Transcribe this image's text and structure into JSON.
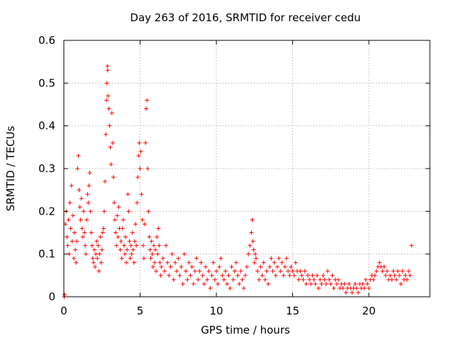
{
  "chart_data": {
    "type": "scatter",
    "title": "Day 263 of 2016, SRMTID for receiver cedu",
    "xlabel": "GPS time / hours",
    "ylabel": "SRMTID / TECUs",
    "xlim": [
      0,
      24
    ],
    "ylim": [
      0,
      0.6
    ],
    "x_ticks": [
      0,
      5,
      10,
      15,
      20
    ],
    "x_tick_labels": [
      "0",
      "5",
      "10",
      "15",
      "20"
    ],
    "y_ticks": [
      0,
      0.1,
      0.2,
      0.3,
      0.4,
      0.5,
      0.6
    ],
    "y_tick_labels": [
      "0",
      "0.1",
      "0.2",
      "0.3",
      "0.4",
      "0.5",
      "0.6"
    ],
    "grid": true,
    "marker": "+",
    "series": [
      {
        "name": "SRMTID",
        "color": "#ff0000",
        "points": [
          [
            0.02,
            0.0
          ],
          [
            0.05,
            0.005
          ],
          [
            0.1,
            0.17
          ],
          [
            0.15,
            0.2
          ],
          [
            0.2,
            0.14
          ],
          [
            0.25,
            0.12
          ],
          [
            0.3,
            0.18
          ],
          [
            0.35,
            0.1
          ],
          [
            0.4,
            0.22
          ],
          [
            0.45,
            0.16
          ],
          [
            0.5,
            0.26
          ],
          [
            0.55,
            0.13
          ],
          [
            0.6,
            0.19
          ],
          [
            0.65,
            0.09
          ],
          [
            0.7,
            0.15
          ],
          [
            0.75,
            0.11
          ],
          [
            0.8,
            0.08
          ],
          [
            0.85,
            0.13
          ],
          [
            0.9,
            0.3
          ],
          [
            0.95,
            0.33
          ],
          [
            1.0,
            0.25
          ],
          [
            1.05,
            0.21
          ],
          [
            1.1,
            0.18
          ],
          [
            1.15,
            0.23
          ],
          [
            1.2,
            0.16
          ],
          [
            1.25,
            0.14
          ],
          [
            1.3,
            0.2
          ],
          [
            1.35,
            0.15
          ],
          [
            1.4,
            0.12
          ],
          [
            1.45,
            0.1
          ],
          [
            1.5,
            0.18
          ],
          [
            1.55,
            0.24
          ],
          [
            1.6,
            0.22
          ],
          [
            1.65,
            0.26
          ],
          [
            1.7,
            0.29
          ],
          [
            1.75,
            0.2
          ],
          [
            1.8,
            0.15
          ],
          [
            1.85,
            0.12
          ],
          [
            1.9,
            0.09
          ],
          [
            1.95,
            0.08
          ],
          [
            2.0,
            0.11
          ],
          [
            2.05,
            0.07
          ],
          [
            2.1,
            0.1
          ],
          [
            2.15,
            0.13
          ],
          [
            2.2,
            0.09
          ],
          [
            2.25,
            0.12
          ],
          [
            2.3,
            0.06
          ],
          [
            2.35,
            0.1
          ],
          [
            2.4,
            0.14
          ],
          [
            2.45,
            0.08
          ],
          [
            2.5,
            0.11
          ],
          [
            2.55,
            0.15
          ],
          [
            2.6,
            0.16
          ],
          [
            2.65,
            0.2
          ],
          [
            2.7,
            0.27
          ],
          [
            2.75,
            0.38
          ],
          [
            2.8,
            0.46
          ],
          [
            2.82,
            0.5
          ],
          [
            2.85,
            0.54
          ],
          [
            2.88,
            0.53
          ],
          [
            2.9,
            0.47
          ],
          [
            2.95,
            0.44
          ],
          [
            3.0,
            0.4
          ],
          [
            3.05,
            0.35
          ],
          [
            3.1,
            0.31
          ],
          [
            3.15,
            0.43
          ],
          [
            3.2,
            0.36
          ],
          [
            3.25,
            0.28
          ],
          [
            3.3,
            0.22
          ],
          [
            3.35,
            0.18
          ],
          [
            3.4,
            0.15
          ],
          [
            3.45,
            0.12
          ],
          [
            3.5,
            0.19
          ],
          [
            3.55,
            0.14
          ],
          [
            3.6,
            0.21
          ],
          [
            3.65,
            0.16
          ],
          [
            3.7,
            0.11
          ],
          [
            3.75,
            0.13
          ],
          [
            3.8,
            0.09
          ],
          [
            3.85,
            0.16
          ],
          [
            3.9,
            0.18
          ],
          [
            3.95,
            0.12
          ],
          [
            4.0,
            0.1
          ],
          [
            4.05,
            0.14
          ],
          [
            4.1,
            0.08
          ],
          [
            4.15,
            0.11
          ],
          [
            4.2,
            0.24
          ],
          [
            4.25,
            0.2
          ],
          [
            4.3,
            0.13
          ],
          [
            4.35,
            0.09
          ],
          [
            4.4,
            0.12
          ],
          [
            4.45,
            0.1
          ],
          [
            4.5,
            0.15
          ],
          [
            4.55,
            0.11
          ],
          [
            4.6,
            0.08
          ],
          [
            4.65,
            0.13
          ],
          [
            4.7,
            0.17
          ],
          [
            4.75,
            0.12
          ],
          [
            4.8,
            0.22
          ],
          [
            4.85,
            0.28
          ],
          [
            4.9,
            0.33
          ],
          [
            4.95,
            0.36
          ],
          [
            5.0,
            0.3
          ],
          [
            5.05,
            0.34
          ],
          [
            5.1,
            0.24
          ],
          [
            5.15,
            0.18
          ],
          [
            5.2,
            0.12
          ],
          [
            5.25,
            0.09
          ],
          [
            5.3,
            0.17
          ],
          [
            5.35,
            0.36
          ],
          [
            5.4,
            0.44
          ],
          [
            5.45,
            0.46
          ],
          [
            5.5,
            0.3
          ],
          [
            5.55,
            0.2
          ],
          [
            5.6,
            0.14
          ],
          [
            5.65,
            0.11
          ],
          [
            5.7,
            0.09
          ],
          [
            5.75,
            0.13
          ],
          [
            5.8,
            0.1
          ],
          [
            5.85,
            0.07
          ],
          [
            5.9,
            0.12
          ],
          [
            5.95,
            0.08
          ],
          [
            6.0,
            0.11
          ],
          [
            6.05,
            0.06
          ],
          [
            6.1,
            0.14
          ],
          [
            6.15,
            0.1
          ],
          [
            6.2,
            0.16
          ],
          [
            6.25,
            0.12
          ],
          [
            6.3,
            0.08
          ],
          [
            6.35,
            0.05
          ],
          [
            6.4,
            0.07
          ],
          [
            6.5,
            0.09
          ],
          [
            6.6,
            0.06
          ],
          [
            6.7,
            0.12
          ],
          [
            6.8,
            0.08
          ],
          [
            6.9,
            0.05
          ],
          [
            7.0,
            0.07
          ],
          [
            7.1,
            0.1
          ],
          [
            7.2,
            0.04
          ],
          [
            7.3,
            0.08
          ],
          [
            7.4,
            0.06
          ],
          [
            7.5,
            0.09
          ],
          [
            7.6,
            0.05
          ],
          [
            7.7,
            0.07
          ],
          [
            7.8,
            0.03
          ],
          [
            7.9,
            0.1
          ],
          [
            8.0,
            0.06
          ],
          [
            8.1,
            0.04
          ],
          [
            8.2,
            0.08
          ],
          [
            8.3,
            0.05
          ],
          [
            8.4,
            0.07
          ],
          [
            8.5,
            0.03
          ],
          [
            8.6,
            0.06
          ],
          [
            8.7,
            0.09
          ],
          [
            8.8,
            0.04
          ],
          [
            8.9,
            0.06
          ],
          [
            9.0,
            0.08
          ],
          [
            9.1,
            0.05
          ],
          [
            9.2,
            0.03
          ],
          [
            9.3,
            0.07
          ],
          [
            9.4,
            0.04
          ],
          [
            9.5,
            0.06
          ],
          [
            9.6,
            0.02
          ],
          [
            9.7,
            0.05
          ],
          [
            9.8,
            0.08
          ],
          [
            9.9,
            0.04
          ],
          [
            10.0,
            0.06
          ],
          [
            10.1,
            0.03
          ],
          [
            10.2,
            0.07
          ],
          [
            10.3,
            0.09
          ],
          [
            10.4,
            0.05
          ],
          [
            10.5,
            0.04
          ],
          [
            10.6,
            0.06
          ],
          [
            10.7,
            0.03
          ],
          [
            10.8,
            0.05
          ],
          [
            10.9,
            0.02
          ],
          [
            11.0,
            0.07
          ],
          [
            11.1,
            0.04
          ],
          [
            11.2,
            0.06
          ],
          [
            11.3,
            0.08
          ],
          [
            11.4,
            0.05
          ],
          [
            11.5,
            0.03
          ],
          [
            11.6,
            0.06
          ],
          [
            11.7,
            0.04
          ],
          [
            11.8,
            0.02
          ],
          [
            11.9,
            0.05
          ],
          [
            12.0,
            0.07
          ],
          [
            12.1,
            0.1
          ],
          [
            12.2,
            0.12
          ],
          [
            12.3,
            0.15
          ],
          [
            12.35,
            0.18
          ],
          [
            12.4,
            0.13
          ],
          [
            12.45,
            0.11
          ],
          [
            12.5,
            0.08
          ],
          [
            12.55,
            0.1
          ],
          [
            12.6,
            0.09
          ],
          [
            12.7,
            0.06
          ],
          [
            12.8,
            0.04
          ],
          [
            12.9,
            0.07
          ],
          [
            13.0,
            0.05
          ],
          [
            13.1,
            0.08
          ],
          [
            13.2,
            0.04
          ],
          [
            13.3,
            0.06
          ],
          [
            13.4,
            0.03
          ],
          [
            13.5,
            0.07
          ],
          [
            13.6,
            0.09
          ],
          [
            13.7,
            0.06
          ],
          [
            13.8,
            0.08
          ],
          [
            13.9,
            0.05
          ],
          [
            14.0,
            0.07
          ],
          [
            14.1,
            0.09
          ],
          [
            14.2,
            0.06
          ],
          [
            14.3,
            0.08
          ],
          [
            14.4,
            0.05
          ],
          [
            14.5,
            0.07
          ],
          [
            14.6,
            0.09
          ],
          [
            14.7,
            0.06
          ],
          [
            14.8,
            0.05
          ],
          [
            14.9,
            0.07
          ],
          [
            15.0,
            0.06
          ],
          [
            15.1,
            0.05
          ],
          [
            15.2,
            0.08
          ],
          [
            15.3,
            0.06
          ],
          [
            15.4,
            0.04
          ],
          [
            15.5,
            0.06
          ],
          [
            15.6,
            0.05
          ],
          [
            15.7,
            0.04
          ],
          [
            15.8,
            0.06
          ],
          [
            15.9,
            0.03
          ],
          [
            16.0,
            0.05
          ],
          [
            16.1,
            0.04
          ],
          [
            16.2,
            0.03
          ],
          [
            16.3,
            0.05
          ],
          [
            16.4,
            0.04
          ],
          [
            16.5,
            0.03
          ],
          [
            16.6,
            0.05
          ],
          [
            16.7,
            0.02
          ],
          [
            16.8,
            0.04
          ],
          [
            16.9,
            0.03
          ],
          [
            17.0,
            0.05
          ],
          [
            17.1,
            0.04
          ],
          [
            17.2,
            0.03
          ],
          [
            17.3,
            0.06
          ],
          [
            17.4,
            0.04
          ],
          [
            17.5,
            0.03
          ],
          [
            17.6,
            0.05
          ],
          [
            17.7,
            0.02
          ],
          [
            17.8,
            0.04
          ],
          [
            17.9,
            0.03
          ],
          [
            18.0,
            0.04
          ],
          [
            18.1,
            0.02
          ],
          [
            18.2,
            0.03
          ],
          [
            18.3,
            0.02
          ],
          [
            18.4,
            0.03
          ],
          [
            18.5,
            0.01
          ],
          [
            18.6,
            0.02
          ],
          [
            18.7,
            0.03
          ],
          [
            18.8,
            0.02
          ],
          [
            18.9,
            0.01
          ],
          [
            19.0,
            0.02
          ],
          [
            19.1,
            0.03
          ],
          [
            19.2,
            0.02
          ],
          [
            19.3,
            0.01
          ],
          [
            19.4,
            0.03
          ],
          [
            19.5,
            0.02
          ],
          [
            19.6,
            0.03
          ],
          [
            19.7,
            0.02
          ],
          [
            19.8,
            0.04
          ],
          [
            19.9,
            0.03
          ],
          [
            20.0,
            0.02
          ],
          [
            20.1,
            0.04
          ],
          [
            20.2,
            0.05
          ],
          [
            20.3,
            0.04
          ],
          [
            20.4,
            0.05
          ],
          [
            20.5,
            0.06
          ],
          [
            20.6,
            0.07
          ],
          [
            20.7,
            0.08
          ],
          [
            20.8,
            0.07
          ],
          [
            20.9,
            0.06
          ],
          [
            21.0,
            0.07
          ],
          [
            21.1,
            0.05
          ],
          [
            21.2,
            0.06
          ],
          [
            21.3,
            0.04
          ],
          [
            21.4,
            0.05
          ],
          [
            21.5,
            0.04
          ],
          [
            21.6,
            0.06
          ],
          [
            21.7,
            0.05
          ],
          [
            21.8,
            0.04
          ],
          [
            21.9,
            0.06
          ],
          [
            22.0,
            0.05
          ],
          [
            22.1,
            0.03
          ],
          [
            22.2,
            0.06
          ],
          [
            22.3,
            0.04
          ],
          [
            22.4,
            0.05
          ],
          [
            22.5,
            0.04
          ],
          [
            22.6,
            0.06
          ],
          [
            22.7,
            0.05
          ],
          [
            22.8,
            0.12
          ]
        ]
      }
    ]
  }
}
